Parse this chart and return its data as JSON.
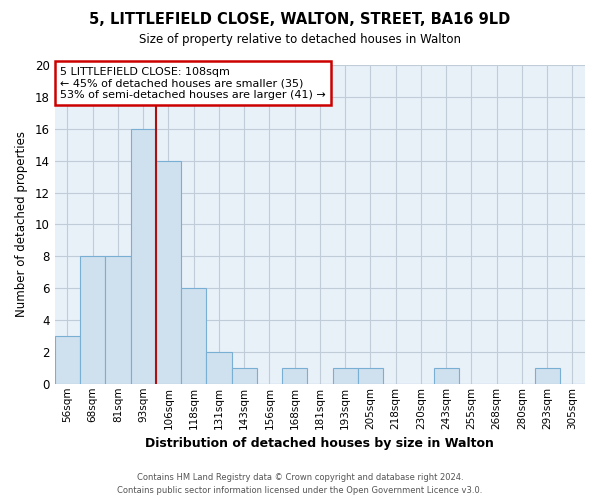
{
  "title": "5, LITTLEFIELD CLOSE, WALTON, STREET, BA16 9LD",
  "subtitle": "Size of property relative to detached houses in Walton",
  "xlabel": "Distribution of detached houses by size in Walton",
  "ylabel": "Number of detached properties",
  "bin_labels": [
    "56sqm",
    "68sqm",
    "81sqm",
    "93sqm",
    "106sqm",
    "118sqm",
    "131sqm",
    "143sqm",
    "156sqm",
    "168sqm",
    "181sqm",
    "193sqm",
    "205sqm",
    "218sqm",
    "230sqm",
    "243sqm",
    "255sqm",
    "268sqm",
    "280sqm",
    "293sqm",
    "305sqm"
  ],
  "bar_heights": [
    3,
    8,
    8,
    16,
    14,
    6,
    2,
    1,
    0,
    1,
    0,
    1,
    1,
    0,
    0,
    1,
    0,
    0,
    0,
    1,
    0
  ],
  "highlight_index": 4,
  "bar_color": "#cfe0ef",
  "bar_edge_color": "#7aafd4",
  "red_line_index": 4,
  "ylim": [
    0,
    20
  ],
  "yticks": [
    0,
    2,
    4,
    6,
    8,
    10,
    12,
    14,
    16,
    18,
    20
  ],
  "annotation_text": "5 LITTLEFIELD CLOSE: 108sqm\n← 45% of detached houses are smaller (35)\n53% of semi-detached houses are larger (41) →",
  "annotation_box_color": "#ffffff",
  "annotation_box_edge": "#cc0000",
  "footer_line1": "Contains HM Land Registry data © Crown copyright and database right 2024.",
  "footer_line2": "Contains public sector information licensed under the Open Government Licence v3.0.",
  "background_color": "#ffffff",
  "plot_bg_color": "#e8f0f8",
  "grid_color": "#c0ccd8"
}
